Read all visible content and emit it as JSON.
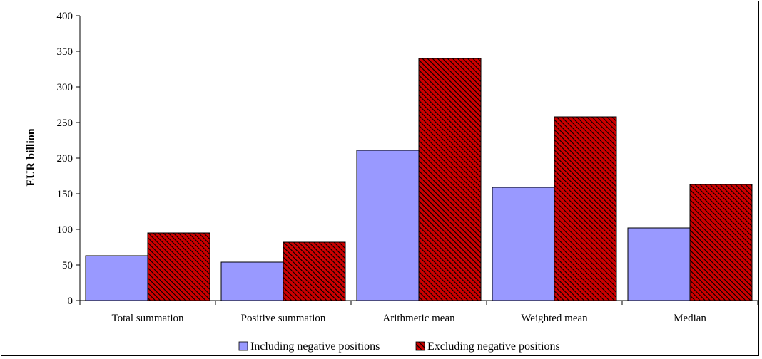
{
  "chart_data": {
    "type": "bar",
    "ylabel": "EUR billion",
    "ylim": [
      0,
      400
    ],
    "yticks": [
      "0",
      "50",
      "100",
      "150",
      "200",
      "250",
      "300",
      "350",
      "400"
    ],
    "categories": [
      "Total summation",
      "Positive summation",
      "Arithmetic mean",
      "Weighted mean",
      "Median"
    ],
    "series": [
      {
        "name": "Including negative positions",
        "values": [
          63,
          54,
          211,
          159,
          102
        ]
      },
      {
        "name": "Excluding negative positions",
        "values": [
          95,
          82,
          340,
          258,
          163
        ]
      }
    ],
    "legend": "bottom",
    "colors": {
      "including": "#9999ff",
      "excluding_fill": "#cc0000",
      "excluding_hatch": "#000000"
    }
  }
}
